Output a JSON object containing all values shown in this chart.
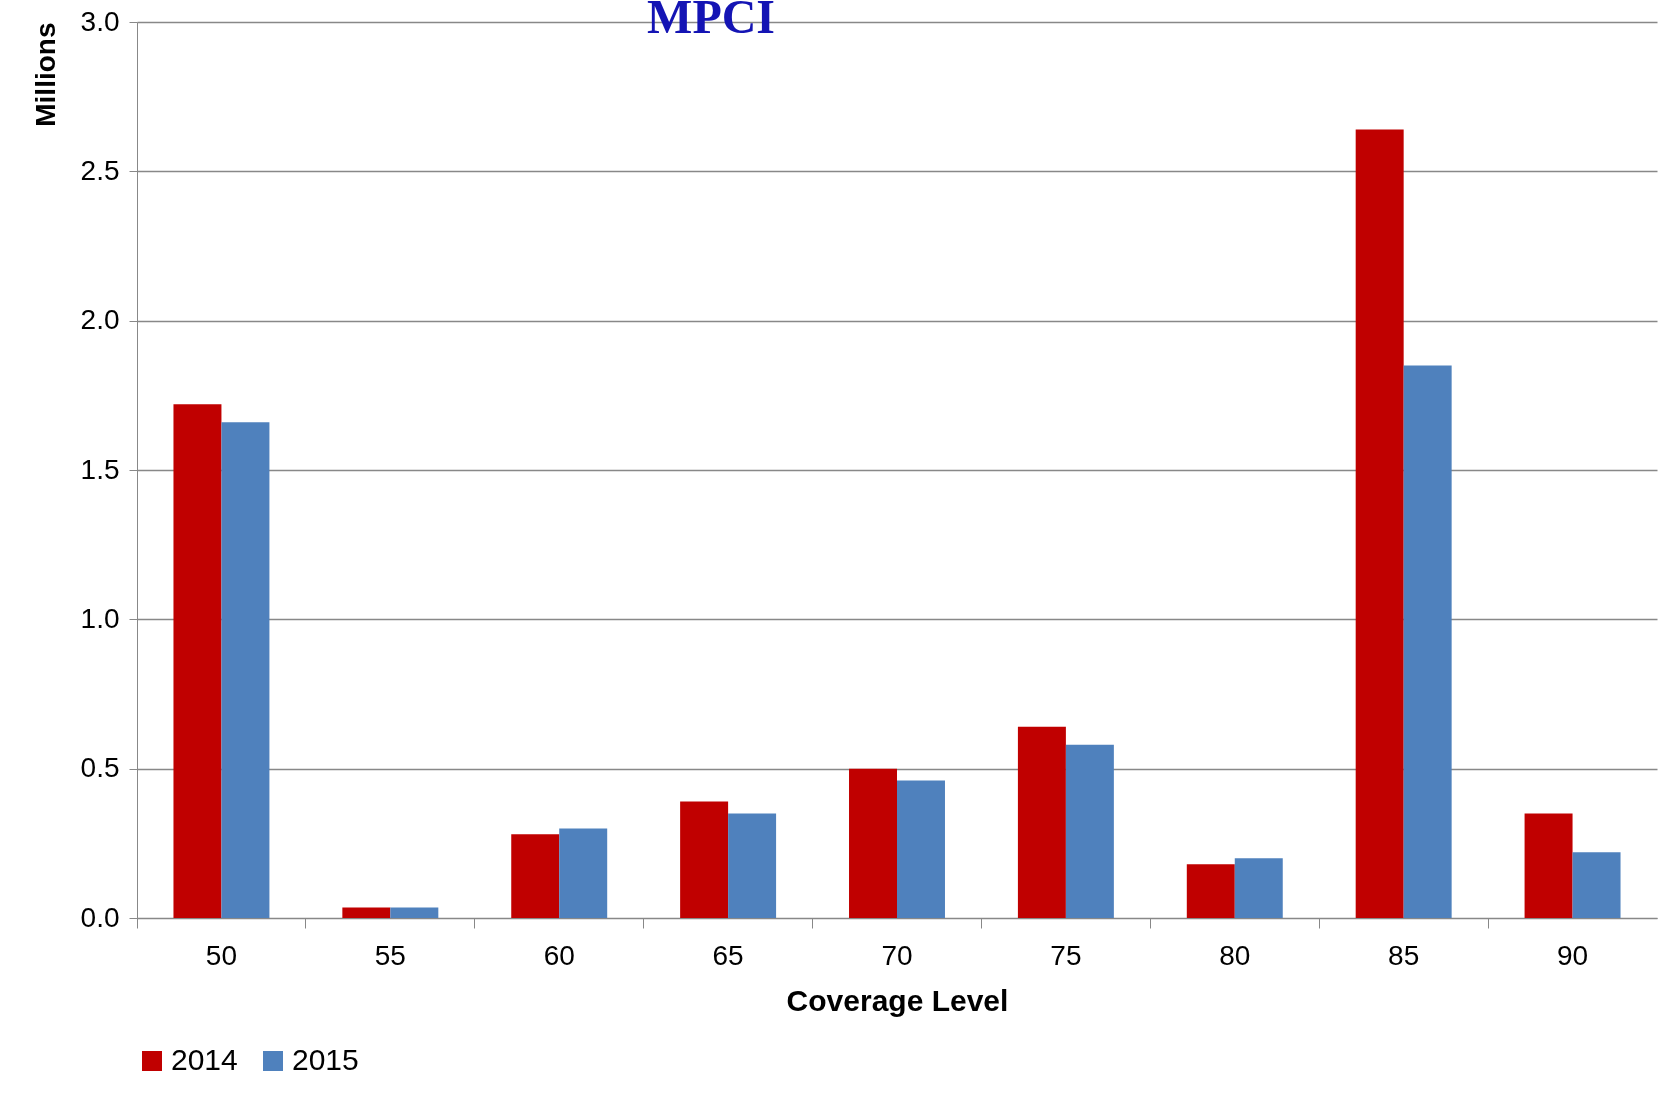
{
  "chart_data": {
    "type": "bar",
    "title": "MPCI",
    "xlabel": "Coverage Level",
    "ylabel": "Millions",
    "categories": [
      "50",
      "55",
      "60",
      "65",
      "70",
      "75",
      "80",
      "85",
      "90"
    ],
    "series": [
      {
        "name": "2014",
        "color": "#c00000",
        "values": [
          1.72,
          0.035,
          0.28,
          0.39,
          0.5,
          0.64,
          0.18,
          2.64,
          0.35
        ]
      },
      {
        "name": "2015",
        "color": "#4f81bd",
        "values": [
          1.66,
          0.035,
          0.3,
          0.35,
          0.46,
          0.58,
          0.2,
          1.85,
          0.22
        ]
      }
    ],
    "ylim": [
      0,
      3
    ],
    "yticks": [
      {
        "value": 0,
        "label": "0.0"
      },
      {
        "value": 0.5,
        "label": "0.5"
      },
      {
        "value": 1,
        "label": "1.0"
      },
      {
        "value": 1.5,
        "label": "1.5"
      },
      {
        "value": 2,
        "label": "2.0"
      },
      {
        "value": 2.5,
        "label": "2.5"
      },
      {
        "value": 3,
        "label": "3.0"
      }
    ],
    "grid": "y",
    "legend": "bottom"
  }
}
